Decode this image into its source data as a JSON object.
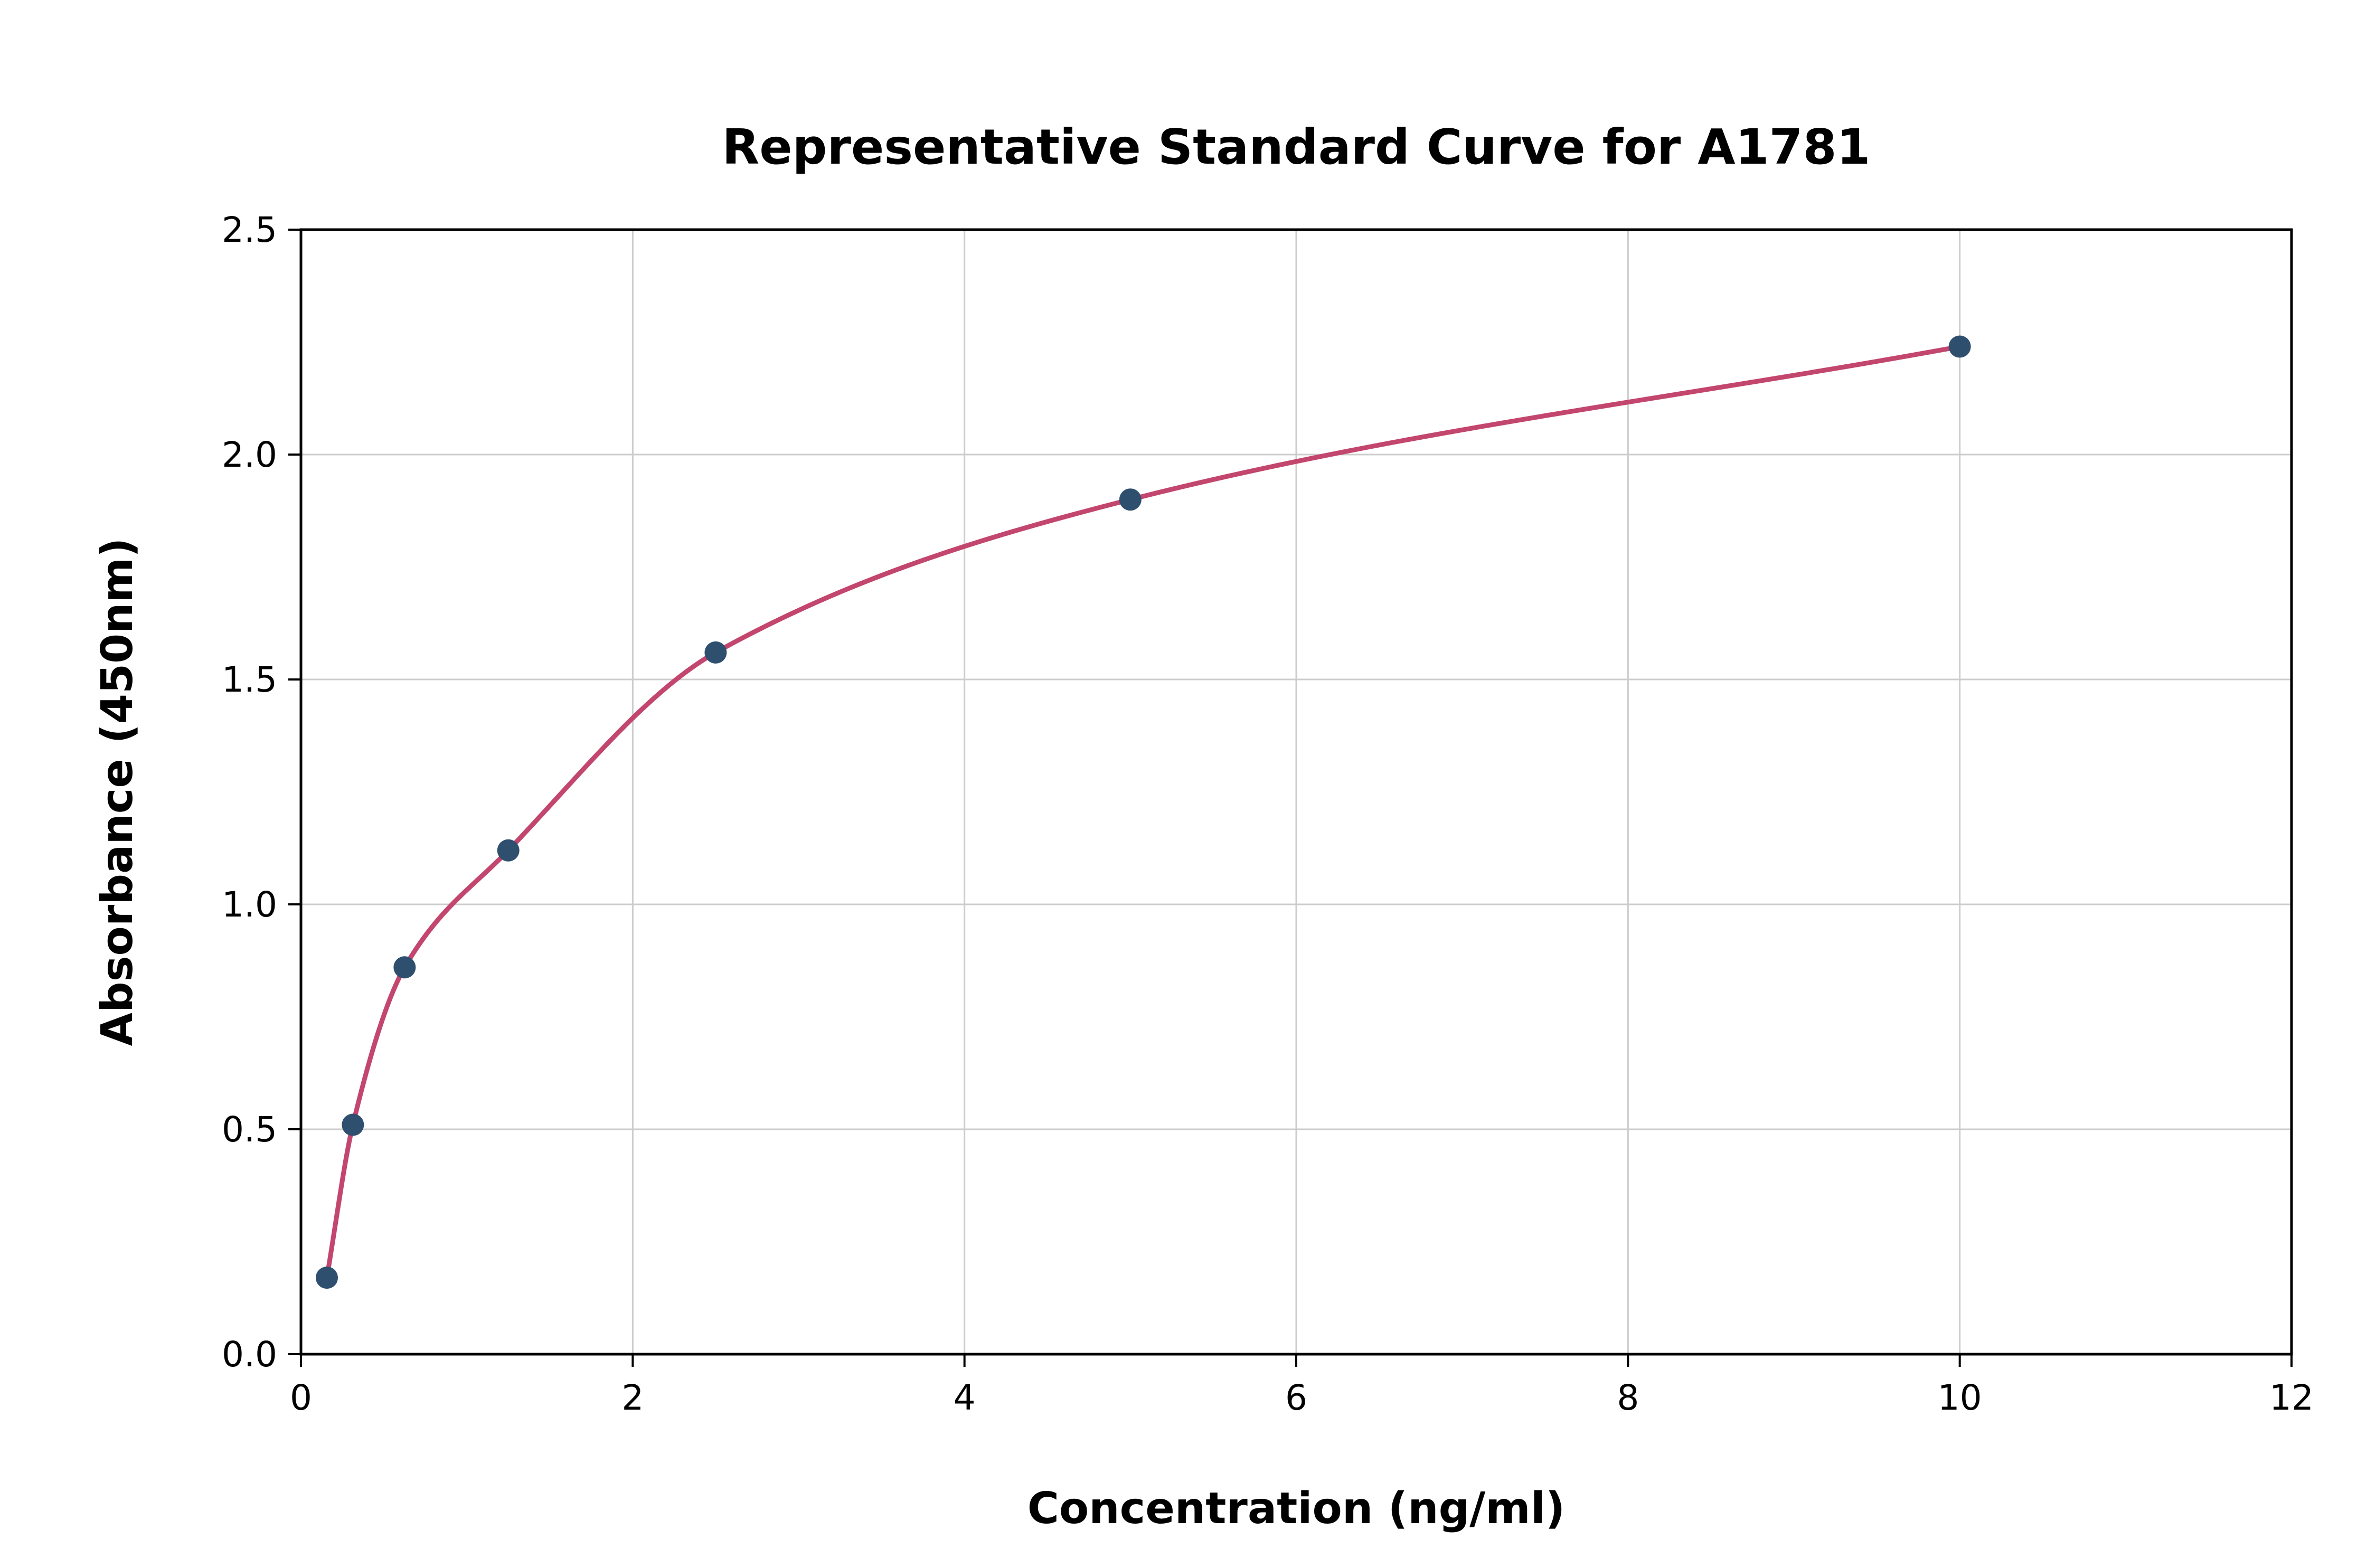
{
  "chart_data": {
    "type": "scatter",
    "title": "Representative Standard Curve for A1781",
    "xlabel": "Concentration (ng/ml)",
    "ylabel": "Absorbance (450nm)",
    "xlim": [
      0,
      12
    ],
    "ylim": [
      0,
      2.5
    ],
    "grid": true,
    "legend": "none",
    "x": [
      0.156,
      0.313,
      0.625,
      1.25,
      2.5,
      5,
      10
    ],
    "y": [
      0.17,
      0.51,
      0.86,
      1.12,
      1.56,
      1.9,
      2.24
    ],
    "series": [
      {
        "name": "standard-points",
        "type": "scatter",
        "x": [
          0.156,
          0.313,
          0.625,
          1.25,
          2.5,
          5,
          10
        ],
        "values": [
          0.17,
          0.51,
          0.86,
          1.12,
          1.56,
          1.9,
          2.24
        ]
      },
      {
        "name": "fitted-curve",
        "type": "line",
        "x": [
          0.156,
          0.313,
          0.625,
          1.25,
          2.5,
          5,
          10
        ],
        "values": [
          0.17,
          0.51,
          0.86,
          1.12,
          1.56,
          1.9,
          2.24
        ]
      }
    ],
    "xticks": {
      "values": [
        0,
        2,
        4,
        6,
        8,
        10,
        12
      ],
      "labels": [
        "0",
        "2",
        "4",
        "6",
        "8",
        "10",
        "12"
      ]
    },
    "yticks": {
      "values": [
        0,
        0.5,
        1.0,
        1.5,
        2.0,
        2.5
      ],
      "labels": [
        "0.0",
        "0.5",
        "1.0",
        "1.5",
        "2.0",
        "2.5"
      ]
    },
    "colors": {
      "curve": "#c2466e",
      "points": "#2f4f6f",
      "grid": "#cccccc",
      "axis": "#000000",
      "background": "#ffffff"
    }
  }
}
